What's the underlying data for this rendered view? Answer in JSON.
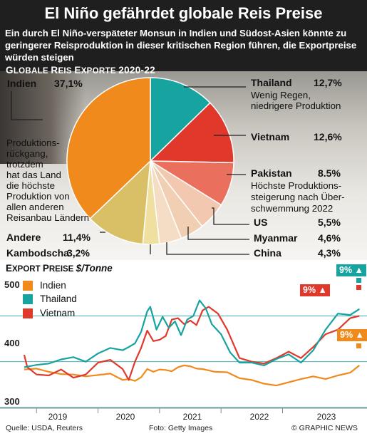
{
  "header": {
    "title": "El Niño gefährdet globale Reis Preise",
    "subtitle": "Ein durch El Niño-verspäteter Monsun in Indien und Südost-Asien könnte zu geringerer Reisproduktion in dieser kritischen Region führen, die Exportpreise würden steigen"
  },
  "pie_section": {
    "title_big": "G",
    "title_small": "LOBALE ",
    "title_big2": "R",
    "title_small2": "EIS ",
    "title_big3": "E",
    "title_small3": "XPORTE ",
    "period": "2020-22"
  },
  "annotations": {
    "indien_note": [
      "Produktions-",
      "rückgang,",
      "trotzdem",
      "hat das Land",
      "die höchste",
      "Produktion von",
      "allen anderen",
      "Reisanbau Ländern"
    ],
    "thailand_note": [
      "Wenig Regen,",
      "niedrigere Produktion"
    ],
    "pakistan_note": [
      "Höchste Produktions-",
      "steigerung nach Über-",
      "schwemmung 2022"
    ]
  },
  "line_section": {
    "title_big": "E",
    "title_small": "XPORT ",
    "title_big2": "P",
    "title_small2": "REISE ",
    "unit": "$/Tonne"
  },
  "footer": {
    "source": "Quelle: USDA, Reuters",
    "photo": "Foto: Getty Images",
    "credit": "© GRAPHIC NEWS"
  },
  "colors": {
    "indien": "#f08a1c",
    "thailand": "#17a3a0",
    "vietnam": "#e0392b",
    "pakistan": "#ea6f5c",
    "other": "#d9c067"
  },
  "chart_data": [
    {
      "type": "pie",
      "unit": "%",
      "slices": [
        {
          "name": "Thailand",
          "value": 12.7,
          "label": "12,7%",
          "color": "#17a3a0"
        },
        {
          "name": "Vietnam",
          "value": 12.6,
          "label": "12,6%",
          "color": "#e0392b"
        },
        {
          "name": "Pakistan",
          "value": 8.5,
          "label": "8.5%",
          "color": "#ea6f5c"
        },
        {
          "name": "US",
          "value": 5.5,
          "label": "5,5%",
          "color": "#f2c9b0"
        },
        {
          "name": "Myanmar",
          "value": 4.6,
          "label": "4,6%",
          "color": "#f0cfb3"
        },
        {
          "name": "China",
          "value": 4.3,
          "label": "4,3%",
          "color": "#f5dcc5"
        },
        {
          "name": "Kambodscha",
          "value": 3.2,
          "label": "3,2%",
          "color": "#f0e0a0"
        },
        {
          "name": "Andere",
          "value": 11.4,
          "label": "11,4%",
          "color": "#d9c067"
        },
        {
          "name": "Indien",
          "value": 37.1,
          "label": "37,1%",
          "color": "#f08a1c"
        }
      ]
    },
    {
      "type": "line",
      "ylim": [
        300,
        580
      ],
      "yticks": [
        300,
        400,
        500
      ],
      "xlim": [
        2018.3,
        2023.85
      ],
      "xticks": [
        2019,
        2020,
        2021,
        2022,
        2023
      ],
      "series": [
        {
          "name": "Indien",
          "color": "#f08a1c",
          "badge": "9%",
          "x": [
            2018.3,
            2018.5,
            2018.7,
            2018.9,
            2019.1,
            2019.3,
            2019.5,
            2019.7,
            2019.9,
            2020.0,
            2020.1,
            2020.2,
            2020.3,
            2020.4,
            2020.5,
            2020.6,
            2020.7,
            2020.8,
            2020.9,
            2021.0,
            2021.1,
            2021.2,
            2021.4,
            2021.6,
            2021.8,
            2022.0,
            2022.2,
            2022.4,
            2022.6,
            2022.8,
            2023.0,
            2023.2,
            2023.4,
            2023.6,
            2023.75
          ],
          "y": [
            383,
            385,
            378,
            373,
            372,
            368,
            371,
            374,
            360,
            362,
            358,
            366,
            384,
            378,
            383,
            382,
            379,
            388,
            392,
            390,
            385,
            384,
            378,
            377,
            364,
            360,
            352,
            348,
            355,
            362,
            368,
            362,
            370,
            376,
            392
          ]
        },
        {
          "name": "Thailand",
          "color": "#17a3a0",
          "badge": "9%",
          "x": [
            2018.3,
            2018.5,
            2018.7,
            2018.9,
            2019.1,
            2019.3,
            2019.5,
            2019.7,
            2019.9,
            2020.0,
            2020.1,
            2020.2,
            2020.3,
            2020.35,
            2020.45,
            2020.55,
            2020.65,
            2020.75,
            2020.85,
            2020.95,
            2021.05,
            2021.15,
            2021.25,
            2021.35,
            2021.5,
            2021.65,
            2021.8,
            2022.0,
            2022.2,
            2022.4,
            2022.6,
            2022.8,
            2023.0,
            2023.2,
            2023.4,
            2023.6,
            2023.75
          ],
          "y": [
            388,
            393,
            396,
            405,
            410,
            400,
            418,
            430,
            425,
            432,
            440,
            465,
            510,
            520,
            470,
            498,
            474,
            488,
            458,
            492,
            500,
            534,
            517,
            482,
            460,
            420,
            398,
            398,
            392,
            406,
            416,
            398,
            425,
            470,
            505,
            502,
            515
          ]
        },
        {
          "name": "Vietnam",
          "color": "#e0392b",
          "badge": "9%",
          "x": [
            2018.3,
            2018.35,
            2018.5,
            2018.7,
            2018.9,
            2019.1,
            2019.3,
            2019.5,
            2019.7,
            2019.9,
            2020.0,
            2020.1,
            2020.2,
            2020.3,
            2020.4,
            2020.5,
            2020.6,
            2020.7,
            2020.8,
            2020.9,
            2021.0,
            2021.1,
            2021.2,
            2021.3,
            2021.45,
            2021.6,
            2021.8,
            2022.0,
            2022.2,
            2022.4,
            2022.6,
            2022.8,
            2023.0,
            2023.2,
            2023.4,
            2023.6,
            2023.75
          ],
          "y": [
            415,
            388,
            372,
            370,
            383,
            365,
            372,
            398,
            404,
            384,
            360,
            400,
            430,
            468,
            445,
            448,
            456,
            492,
            495,
            482,
            490,
            480,
            512,
            520,
            505,
            470,
            408,
            400,
            396,
            408,
            422,
            408,
            432,
            460,
            470,
            495,
            500
          ]
        }
      ]
    }
  ]
}
